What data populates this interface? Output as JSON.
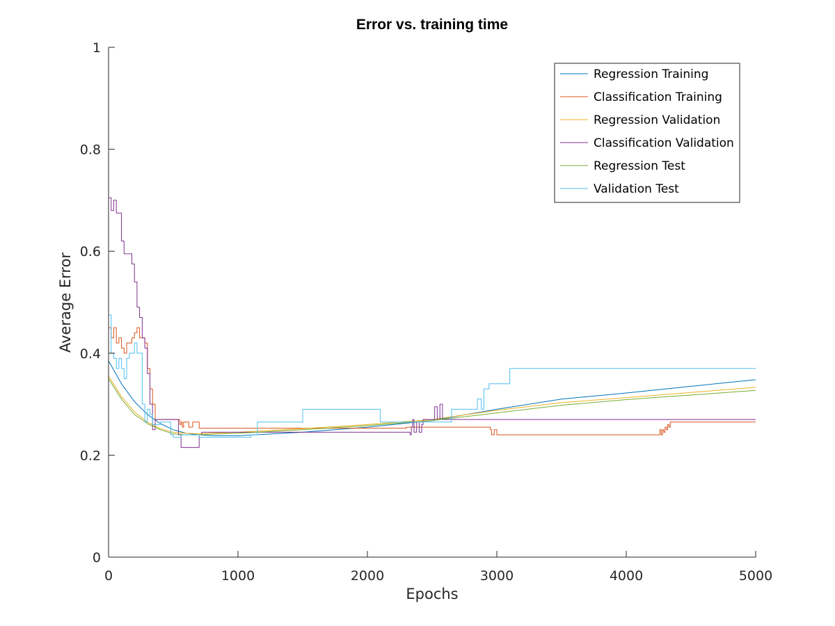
{
  "chart_data": {
    "type": "line",
    "title": "Error vs. training time",
    "xlabel": "Epochs",
    "ylabel": "Average Error",
    "xlim": [
      0,
      5000
    ],
    "ylim": [
      0,
      1
    ],
    "xticks": [
      "0",
      "1000",
      "2000",
      "3000",
      "4000",
      "5000"
    ],
    "yticks": [
      "0",
      "0.2",
      "0.4",
      "0.6",
      "0.8",
      "1"
    ],
    "grid": false,
    "legend_position": "top-right",
    "series": [
      {
        "name": "Regression Training",
        "color": "#0072BD",
        "style": "smooth",
        "x": [
          0,
          100,
          200,
          300,
          400,
          500,
          600,
          700,
          800,
          1000,
          1500,
          2000,
          2500,
          3000,
          3500,
          4000,
          4500,
          5000
        ],
        "y": [
          0.385,
          0.34,
          0.305,
          0.28,
          0.262,
          0.25,
          0.243,
          0.24,
          0.238,
          0.238,
          0.245,
          0.255,
          0.268,
          0.29,
          0.31,
          0.322,
          0.335,
          0.348
        ]
      },
      {
        "name": "Classification Training",
        "color": "#D95319",
        "style": "step",
        "x": [
          0,
          20,
          40,
          60,
          80,
          100,
          120,
          140,
          160,
          180,
          200,
          220,
          240,
          260,
          280,
          300,
          320,
          340,
          360,
          380,
          550,
          560,
          570,
          580,
          600,
          620,
          650,
          700,
          1000,
          1500,
          2000,
          2300,
          2340,
          2350,
          2400,
          2500,
          2950,
          2960,
          2980,
          3000,
          4250,
          4260,
          4270,
          4280,
          4290,
          4300,
          4310,
          4320,
          4330,
          4340,
          5000
        ],
        "y": [
          0.45,
          0.43,
          0.45,
          0.42,
          0.43,
          0.41,
          0.4,
          0.42,
          0.42,
          0.43,
          0.44,
          0.45,
          0.43,
          0.43,
          0.42,
          0.37,
          0.33,
          0.3,
          0.27,
          0.27,
          0.26,
          0.265,
          0.255,
          0.265,
          0.265,
          0.255,
          0.265,
          0.253,
          0.253,
          0.253,
          0.253,
          0.255,
          0.255,
          0.255,
          0.255,
          0.255,
          0.25,
          0.24,
          0.25,
          0.24,
          0.24,
          0.25,
          0.24,
          0.25,
          0.245,
          0.255,
          0.25,
          0.26,
          0.255,
          0.265,
          0.265
        ]
      },
      {
        "name": "Regression Validation",
        "color": "#EDB120",
        "style": "smooth",
        "x": [
          0,
          100,
          200,
          300,
          400,
          500,
          600,
          700,
          800,
          1000,
          1500,
          2000,
          2500,
          3000,
          3500,
          4000,
          4500,
          5000
        ],
        "y": [
          0.355,
          0.315,
          0.285,
          0.265,
          0.252,
          0.245,
          0.243,
          0.242,
          0.243,
          0.245,
          0.252,
          0.26,
          0.27,
          0.288,
          0.303,
          0.313,
          0.323,
          0.333
        ]
      },
      {
        "name": "Classification Validation",
        "color": "#7E2F8E",
        "style": "step",
        "x": [
          0,
          20,
          40,
          60,
          80,
          100,
          120,
          140,
          160,
          180,
          200,
          220,
          240,
          260,
          280,
          300,
          320,
          340,
          360,
          380,
          540,
          560,
          700,
          720,
          1500,
          2330,
          2340,
          2350,
          2360,
          2380,
          2400,
          2420,
          2430,
          2440,
          2450,
          2520,
          2540,
          2560,
          2580,
          2600,
          5000
        ],
        "y": [
          0.705,
          0.68,
          0.7,
          0.675,
          0.675,
          0.62,
          0.595,
          0.595,
          0.595,
          0.575,
          0.54,
          0.49,
          0.47,
          0.43,
          0.41,
          0.36,
          0.3,
          0.25,
          0.27,
          0.27,
          0.24,
          0.215,
          0.24,
          0.245,
          0.245,
          0.24,
          0.255,
          0.27,
          0.245,
          0.265,
          0.245,
          0.26,
          0.27,
          0.27,
          0.27,
          0.295,
          0.27,
          0.3,
          0.27,
          0.27,
          0.27
        ]
      },
      {
        "name": "Regression Test",
        "color": "#77AC30",
        "style": "smooth",
        "x": [
          0,
          100,
          200,
          300,
          400,
          500,
          600,
          700,
          800,
          1000,
          1500,
          2000,
          2500,
          3000,
          3500,
          4000,
          4500,
          5000
        ],
        "y": [
          0.35,
          0.31,
          0.28,
          0.262,
          0.25,
          0.242,
          0.24,
          0.24,
          0.241,
          0.243,
          0.25,
          0.258,
          0.268,
          0.283,
          0.298,
          0.309,
          0.318,
          0.327
        ]
      },
      {
        "name": "Validation Test",
        "color": "#4DBEEE",
        "style": "step",
        "x": [
          0,
          20,
          40,
          60,
          80,
          100,
          120,
          140,
          160,
          180,
          200,
          220,
          240,
          260,
          280,
          300,
          320,
          340,
          400,
          480,
          500,
          560,
          700,
          1100,
          1150,
          1400,
          1500,
          2100,
          2600,
          2650,
          2850,
          2880,
          2900,
          2940,
          3100,
          5000
        ],
        "y": [
          0.475,
          0.4,
          0.39,
          0.37,
          0.39,
          0.37,
          0.35,
          0.39,
          0.4,
          0.4,
          0.42,
          0.4,
          0.4,
          0.3,
          0.265,
          0.29,
          0.28,
          0.26,
          0.265,
          0.24,
          0.235,
          0.24,
          0.235,
          0.24,
          0.265,
          0.265,
          0.29,
          0.265,
          0.265,
          0.29,
          0.31,
          0.29,
          0.33,
          0.34,
          0.37,
          0.37
        ]
      }
    ]
  }
}
